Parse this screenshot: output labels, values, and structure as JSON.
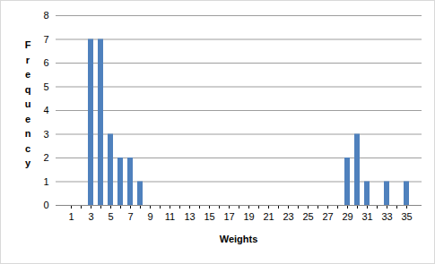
{
  "chart_data": {
    "type": "bar",
    "x_label": "Weights",
    "y_label": "Frequency",
    "categories": [
      "1",
      null,
      "3",
      null,
      "5",
      null,
      "7",
      null,
      "9",
      null,
      "11",
      null,
      "13",
      null,
      "15",
      null,
      "17",
      null,
      "19",
      null,
      "21",
      null,
      "23",
      null,
      "25",
      null,
      "27",
      null,
      "29",
      null,
      "31",
      null,
      "33",
      null,
      "35"
    ],
    "values": [
      0,
      0,
      7,
      7,
      3,
      2,
      2,
      1,
      0,
      0,
      0,
      0,
      0,
      0,
      0,
      0,
      0,
      0,
      0,
      0,
      0,
      0,
      0,
      0,
      0,
      0,
      0,
      0,
      2,
      3,
      1,
      0,
      1,
      0,
      1
    ],
    "color": "#4f81bd",
    "ylim": [
      0,
      8
    ],
    "yticks": [
      0,
      1,
      2,
      3,
      4,
      5,
      6,
      7,
      8
    ],
    "grid": true
  }
}
